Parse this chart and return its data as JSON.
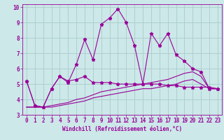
{
  "xlabel": "Windchill (Refroidissement éolien,°C)",
  "bg_color": "#cce8e8",
  "grid_color": "#aacccc",
  "line_color": "#990099",
  "xlim": [
    -0.5,
    23.5
  ],
  "ylim": [
    3,
    10.2
  ],
  "xticks": [
    0,
    1,
    2,
    3,
    4,
    5,
    6,
    7,
    8,
    9,
    10,
    11,
    12,
    13,
    14,
    15,
    16,
    17,
    18,
    19,
    20,
    21,
    22,
    23
  ],
  "yticks": [
    3,
    4,
    5,
    6,
    7,
    8,
    9,
    10
  ],
  "line1_x": [
    0,
    1,
    2,
    3,
    4,
    5,
    6,
    7,
    8,
    9,
    10,
    11,
    12,
    13,
    14,
    15,
    16,
    17,
    18,
    19,
    20,
    21,
    22,
    23
  ],
  "line1_y": [
    5.2,
    3.6,
    3.5,
    4.7,
    5.5,
    5.1,
    6.3,
    7.9,
    6.6,
    8.9,
    9.3,
    9.9,
    9.0,
    7.5,
    5.0,
    8.3,
    7.5,
    8.3,
    6.9,
    6.5,
    6.0,
    5.8,
    4.7,
    4.7
  ],
  "line2_x": [
    0,
    1,
    2,
    3,
    4,
    5,
    6,
    7,
    8,
    9,
    10,
    11,
    12,
    13,
    14,
    15,
    16,
    17,
    18,
    19,
    20,
    21,
    22,
    23
  ],
  "line2_y": [
    5.2,
    3.6,
    3.5,
    4.7,
    5.5,
    5.2,
    5.3,
    5.5,
    5.1,
    5.1,
    5.1,
    5.0,
    5.0,
    5.0,
    5.0,
    5.0,
    5.0,
    4.9,
    4.9,
    4.8,
    4.8,
    4.8,
    4.8,
    4.7
  ],
  "line3_x": [
    0,
    1,
    2,
    3,
    4,
    5,
    6,
    7,
    8,
    9,
    10,
    11,
    12,
    13,
    14,
    15,
    16,
    17,
    18,
    19,
    20,
    21,
    22,
    23
  ],
  "line3_y": [
    3.5,
    3.5,
    3.5,
    3.6,
    3.7,
    3.8,
    4.0,
    4.1,
    4.3,
    4.5,
    4.6,
    4.7,
    4.8,
    4.9,
    5.0,
    5.1,
    5.2,
    5.3,
    5.5,
    5.7,
    5.8,
    5.5,
    4.7,
    4.7
  ],
  "line4_x": [
    0,
    1,
    2,
    3,
    4,
    5,
    6,
    7,
    8,
    9,
    10,
    11,
    12,
    13,
    14,
    15,
    16,
    17,
    18,
    19,
    20,
    21,
    22,
    23
  ],
  "line4_y": [
    3.5,
    3.5,
    3.5,
    3.5,
    3.6,
    3.7,
    3.8,
    3.9,
    4.1,
    4.2,
    4.3,
    4.4,
    4.5,
    4.6,
    4.7,
    4.7,
    4.8,
    4.9,
    5.0,
    5.2,
    5.3,
    5.0,
    4.7,
    4.7
  ],
  "tick_fontsize": 5.5,
  "label_fontsize": 5.5
}
